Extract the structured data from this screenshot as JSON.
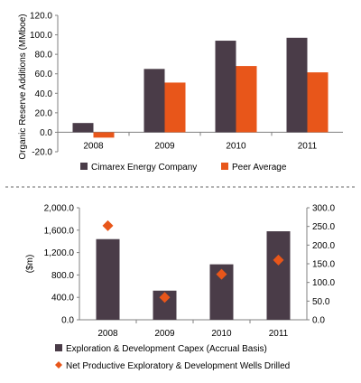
{
  "colors": {
    "cimarex": "#4a3c48",
    "peer": "#e8561a",
    "axis": "#808080",
    "divider": "#666666"
  },
  "chart_data": [
    {
      "type": "bar",
      "categories": [
        "2008",
        "2009",
        "2010",
        "2011"
      ],
      "series": [
        {
          "name": "Cimarex Energy Company",
          "color": "#4a3c48",
          "values": [
            9.5,
            65.0,
            94.0,
            97.0
          ]
        },
        {
          "name": "Peer Average",
          "color": "#e8561a",
          "values": [
            -5.5,
            51.0,
            68.0,
            61.5
          ]
        }
      ],
      "ylabel": "Organic Reserve Additions (MMboe)",
      "ylim": [
        -20,
        120
      ],
      "yticks": [
        "120.0",
        "100.0",
        "80.0",
        "60.0",
        "40.0",
        "20.0",
        "0.0",
        "-20.0"
      ],
      "ytick_values": [
        120,
        100,
        80,
        60,
        40,
        20,
        0,
        -20
      ],
      "legend_position": "bottom",
      "grid": false
    },
    {
      "type": "bar",
      "categories": [
        "2008",
        "2009",
        "2010",
        "2011"
      ],
      "series": [
        {
          "name": "Exploration & Development Capex (Accrual Basis)",
          "type": "bar",
          "axis": "left",
          "color": "#4a3c48",
          "values": [
            1440,
            520,
            990,
            1580
          ]
        },
        {
          "name": "Net Productive Exploratory & Development Wells Drilled",
          "type": "scatter",
          "marker": "diamond",
          "axis": "right",
          "color": "#e8561a",
          "values": [
            252,
            60,
            122,
            160
          ]
        }
      ],
      "ylabel": "($m)",
      "ylim": [
        0,
        2000
      ],
      "yticks": [
        "2,000.0",
        "1,600.0",
        "1,200.0",
        "800.0",
        "400.0",
        "0.0"
      ],
      "ytick_values": [
        2000,
        1600,
        1200,
        800,
        400,
        0
      ],
      "y2lim": [
        0,
        300
      ],
      "y2ticks": [
        "300.0",
        "250.0",
        "200.0",
        "150.0",
        "100.0",
        "50.0",
        "0.0"
      ],
      "y2tick_values": [
        300,
        250,
        200,
        150,
        100,
        50,
        0
      ],
      "legend_position": "bottom",
      "grid": false
    }
  ]
}
